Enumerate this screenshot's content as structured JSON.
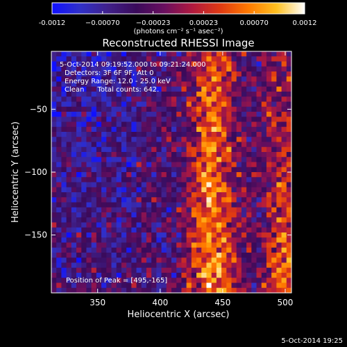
{
  "chart_data": {
    "type": "heatmap",
    "title": "Reconstructed RHESSI Image",
    "xlabel": "Heliocentric X (arcsec)",
    "ylabel": "Heliocentric Y (arcsec)",
    "xlim": [
      313,
      505
    ],
    "ylim": [
      -196,
      -4
    ],
    "x_ticks": [
      350,
      400,
      450,
      500
    ],
    "y_ticks": [
      -50,
      -100,
      -150
    ],
    "colorbar": {
      "label": "(photons cm⁻² s⁻¹ asec⁻²)",
      "range": [
        -0.0012,
        0.0012
      ],
      "ticks": [
        "-0.0012",
        "−0.00070",
        "−0.00023",
        "0.00023",
        "0.00070",
        "0.0012"
      ],
      "colors": [
        "#1010ff",
        "#3030c8",
        "#40208a",
        "#3a0a5a",
        "#6a0f5f",
        "#b0193f",
        "#e03a12",
        "#ff7a00",
        "#ffc020",
        "#ffffff"
      ]
    },
    "annotations": [
      "5-Oct-2014 09:19:52.000 to 09:21:24.000",
      "Detectors: 3F 6F 9F, Att 0",
      "Energy Range: 12.0 - 25.0 keV",
      "Clean      Total counts: 642.",
      "Position of Peak = [495,-165]"
    ],
    "peak": {
      "x": 495,
      "y": -165
    },
    "footer": "5-Oct-2014 19:25"
  }
}
